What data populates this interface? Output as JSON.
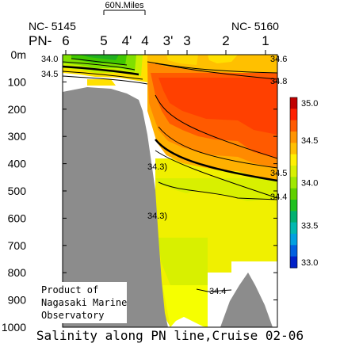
{
  "chart_data": {
    "type": "contour",
    "title": "Salinity along PN line,Cruise 02-06",
    "scale_bar_label": "60N.Miles",
    "cruise_labels": {
      "left": "NC- 5145",
      "right": "NC- 5160"
    },
    "station_prefix": "PN-",
    "stations": [
      "6",
      "5",
      "4'",
      "4",
      "3'",
      "3",
      "2",
      "1"
    ],
    "yaxis": {
      "ticks": [
        "0m",
        "100",
        "200",
        "300",
        "400",
        "500",
        "600",
        "700",
        "800",
        "900",
        "1000"
      ],
      "ylim": [
        0,
        1000
      ],
      "unit": "m"
    },
    "contour_labels": [
      "34.0",
      "34.5",
      "34.6",
      "34.8",
      "34.3)",
      "34.3)",
      "34.5",
      "34.4",
      "34.4"
    ],
    "colorbar": {
      "ticks": [
        "35.0",
        "34.5",
        "34.0",
        "33.5",
        "33.0"
      ],
      "range": [
        33.0,
        35.0
      ],
      "colors": [
        "#c00000",
        "#ff2000",
        "#ff5a00",
        "#ff9400",
        "#ffc000",
        "#fff000",
        "#d8f000",
        "#a0e800",
        "#60d000",
        "#20c020",
        "#00b070",
        "#00b8b0",
        "#00a0e0",
        "#0060e0",
        "#0020c8"
      ]
    },
    "credit": [
      "Product of",
      "Nagasaki Marine",
      "Observatory"
    ]
  }
}
